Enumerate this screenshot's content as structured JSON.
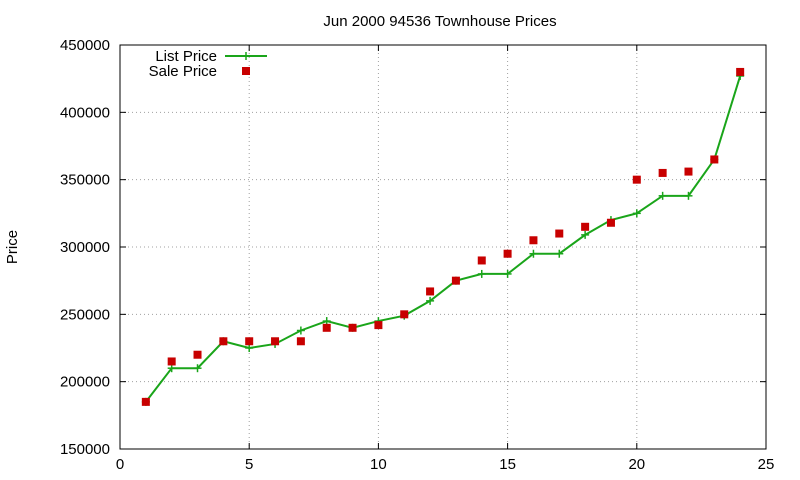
{
  "chart_data": {
    "type": "line",
    "title": "Jun 2000 94536 Townhouse Prices",
    "xlabel": "",
    "ylabel": "Price",
    "xlim": [
      0,
      25
    ],
    "ylim": [
      150000,
      450000
    ],
    "xticks": [
      0,
      5,
      10,
      15,
      20,
      25
    ],
    "yticks": [
      150000,
      200000,
      250000,
      300000,
      350000,
      400000,
      450000
    ],
    "grid": true,
    "legend_position": "top-left",
    "series": [
      {
        "name": "List Price",
        "style": "line-with-plus-markers",
        "color": "#1aa51a",
        "x": [
          1,
          2,
          3,
          4,
          5,
          6,
          7,
          8,
          9,
          10,
          11,
          12,
          13,
          14,
          15,
          16,
          17,
          18,
          19,
          20,
          21,
          22,
          23,
          24
        ],
        "values": [
          185000,
          210000,
          210000,
          230000,
          225000,
          228000,
          238000,
          245000,
          240000,
          245000,
          249000,
          260000,
          275000,
          280000,
          280000,
          295000,
          295000,
          309000,
          320000,
          325000,
          338000,
          338000,
          365000,
          427000
        ]
      },
      {
        "name": "Sale Price",
        "style": "square-markers",
        "color": "#c80000",
        "x": [
          1,
          2,
          3,
          4,
          5,
          6,
          7,
          8,
          9,
          10,
          11,
          12,
          13,
          14,
          15,
          16,
          17,
          18,
          19,
          20,
          21,
          22,
          23,
          24
        ],
        "values": [
          185000,
          215000,
          220000,
          230000,
          230000,
          230000,
          230000,
          240000,
          240000,
          242000,
          250000,
          267000,
          275000,
          290000,
          295000,
          305000,
          310000,
          315000,
          318000,
          350000,
          355000,
          356000,
          365000,
          430000
        ]
      }
    ]
  }
}
